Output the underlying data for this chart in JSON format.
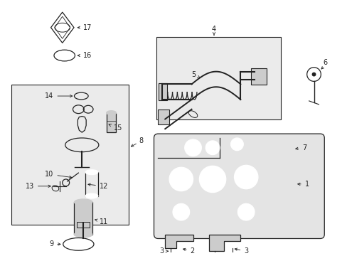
{
  "background_color": "#ffffff",
  "fig_width": 4.89,
  "fig_height": 3.6,
  "dpi": 100,
  "line_color": "#222222",
  "fill_light": "#e8e8e8",
  "fill_mid": "#cccccc",
  "label_fontsize": 7.0
}
